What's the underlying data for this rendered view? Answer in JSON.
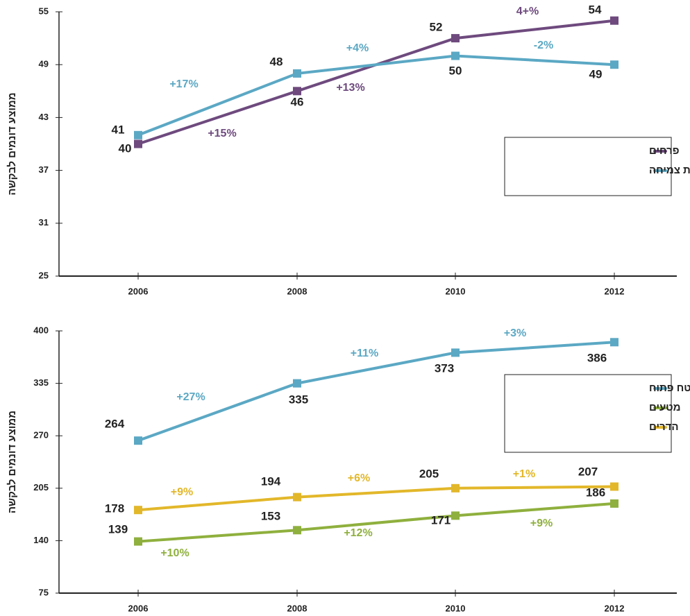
{
  "chart_data": [
    {
      "type": "line",
      "y_label": "ממוצע דונמים לבקשה",
      "categories": [
        "2006",
        "2008",
        "2010",
        "2012"
      ],
      "ylim": [
        25,
        55
      ],
      "yticks": [
        25,
        31,
        37,
        43,
        49,
        55
      ],
      "series": [
        {
          "name": "פרחים",
          "color": "#6e4a7e",
          "values": [
            40,
            46,
            52,
            54
          ],
          "change_labels": [
            "+15%",
            "+13%",
            "4+%"
          ]
        },
        {
          "name": "ירקות בבית צמיחה",
          "color": "#5ba8c4",
          "values": [
            41,
            48,
            50,
            49
          ],
          "change_labels": [
            "+17%",
            "+4%",
            "-2%"
          ]
        }
      ]
    },
    {
      "type": "line",
      "y_label": "ממוצע דונמים לבקשה",
      "categories": [
        "2006",
        "2008",
        "2010",
        "2012"
      ],
      "ylim": [
        75,
        400
      ],
      "yticks": [
        75,
        140,
        205,
        270,
        335,
        400
      ],
      "series": [
        {
          "name": "ירקות בשטח פתוח",
          "color": "#5ba8c4",
          "values": [
            264,
            335,
            373,
            386
          ],
          "change_labels": [
            "+27%",
            "+11%",
            "+3%"
          ]
        },
        {
          "name": "מטעים",
          "color": "#8fb03e",
          "values": [
            139,
            153,
            171,
            186
          ],
          "change_labels": [
            "+10%",
            "+12%",
            "+9%"
          ]
        },
        {
          "name": "הדרים",
          "color": "#e2b72a",
          "values": [
            178,
            194,
            205,
            207
          ],
          "change_labels": [
            "+9%",
            "+6%",
            "+1%"
          ]
        }
      ]
    }
  ]
}
